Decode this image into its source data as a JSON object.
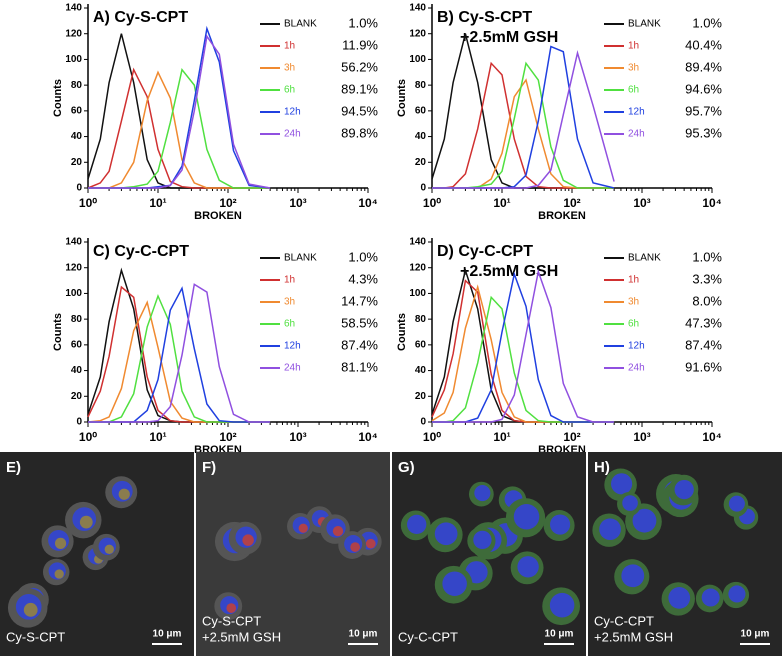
{
  "chart_data": [
    {
      "type": "line",
      "title": "A) Cy-S-CPT",
      "xlabel": "BROKEN",
      "ylabel": "Counts",
      "xscale": "log",
      "xlim": [
        1,
        10000
      ],
      "xticks": [
        {
          "value": 1,
          "label": "10⁰"
        },
        {
          "value": 10,
          "label": "10¹"
        },
        {
          "value": 100,
          "label": "10²"
        },
        {
          "value": 1000,
          "label": "10³"
        },
        {
          "value": 10000,
          "label": "10⁴"
        }
      ],
      "ylim": [
        0,
        140
      ],
      "yticks": [
        0,
        20,
        40,
        60,
        80,
        100,
        120,
        140
      ],
      "x": [
        1,
        1.5,
        2,
        3,
        4.5,
        7,
        10,
        15,
        22,
        33,
        50,
        75,
        120,
        200,
        400
      ],
      "series": [
        {
          "name": "BLANK",
          "color": "#111111",
          "gated_percent": "1.0%",
          "values": [
            7,
            38,
            82,
            120,
            82,
            22,
            4,
            0,
            0,
            0,
            0,
            0,
            0,
            0,
            0
          ]
        },
        {
          "name": "1h",
          "color": "#d03030",
          "gated_percent": "11.9%",
          "values": [
            0,
            4,
            13,
            52,
            92,
            71,
            30,
            5,
            1,
            0,
            0,
            0,
            0,
            0,
            0
          ]
        },
        {
          "name": "3h",
          "color": "#f08a30",
          "gated_percent": "56.2%",
          "values": [
            0,
            0,
            0,
            4,
            20,
            68,
            90,
            70,
            22,
            4,
            0,
            0,
            0,
            0,
            0
          ]
        },
        {
          "name": "6h",
          "color": "#50e040",
          "gated_percent": "89.1%",
          "values": [
            0,
            0,
            0,
            0,
            1,
            3,
            13,
            51,
            92,
            80,
            30,
            6,
            0,
            0,
            0
          ]
        },
        {
          "name": "12h",
          "color": "#2040e0",
          "gated_percent": "94.5%",
          "values": [
            0,
            0,
            0,
            0,
            0,
            0,
            1,
            2,
            17,
            68,
            124,
            98,
            29,
            2,
            0
          ]
        },
        {
          "name": "24h",
          "color": "#9050e0",
          "gated_percent": "89.8%",
          "values": [
            0,
            0,
            0,
            0,
            0,
            0,
            0,
            2,
            14,
            60,
            118,
            104,
            34,
            3,
            0
          ]
        }
      ]
    },
    {
      "type": "line",
      "title": "B) Cy-S-CPT",
      "subtitle": "+2.5mM GSH",
      "xlabel": "BROKEN",
      "ylabel": "Counts",
      "xscale": "log",
      "xlim": [
        1,
        10000
      ],
      "xticks": [
        {
          "value": 1,
          "label": "10⁰"
        },
        {
          "value": 10,
          "label": "10¹"
        },
        {
          "value": 100,
          "label": "10²"
        },
        {
          "value": 1000,
          "label": "10³"
        },
        {
          "value": 10000,
          "label": "10⁴"
        }
      ],
      "ylim": [
        0,
        140
      ],
      "yticks": [
        0,
        20,
        40,
        60,
        80,
        100,
        120,
        140
      ],
      "x": [
        1,
        1.5,
        2,
        3,
        4.5,
        7,
        10,
        15,
        22,
        33,
        50,
        75,
        120,
        200,
        400
      ],
      "series": [
        {
          "name": "BLANK",
          "color": "#111111",
          "gated_percent": "1.0%",
          "values": [
            7,
            38,
            82,
            120,
            82,
            22,
            4,
            0,
            0,
            0,
            0,
            0,
            0,
            0,
            0
          ]
        },
        {
          "name": "1h",
          "color": "#d03030",
          "gated_percent": "40.4%",
          "values": [
            0,
            0,
            1,
            11,
            46,
            97,
            88,
            38,
            9,
            1,
            0,
            0,
            0,
            0,
            0
          ]
        },
        {
          "name": "3h",
          "color": "#f08a30",
          "gated_percent": "89.4%",
          "values": [
            0,
            0,
            0,
            0,
            0,
            7,
            27,
            71,
            84,
            46,
            11,
            1,
            0,
            0,
            0
          ]
        },
        {
          "name": "6h",
          "color": "#50e040",
          "gated_percent": "94.6%",
          "values": [
            0,
            0,
            0,
            0,
            1,
            3,
            13,
            54,
            97,
            84,
            32,
            6,
            0,
            0,
            0
          ]
        },
        {
          "name": "12h",
          "color": "#2040e0",
          "gated_percent": "95.7%",
          "values": [
            0,
            0,
            0,
            0,
            0,
            0,
            0,
            1,
            10,
            52,
            110,
            106,
            38,
            4,
            0
          ]
        },
        {
          "name": "24h",
          "color": "#9050e0",
          "gated_percent": "95.3%",
          "values": [
            0,
            0,
            0,
            0,
            0,
            0,
            0,
            0,
            0,
            2,
            14,
            57,
            105,
            64,
            5
          ]
        }
      ]
    },
    {
      "type": "line",
      "title": "C) Cy-C-CPT",
      "xlabel": "BROKEN",
      "ylabel": "Counts",
      "xscale": "log",
      "xlim": [
        1,
        10000
      ],
      "xticks": [
        {
          "value": 1,
          "label": "10⁰"
        },
        {
          "value": 10,
          "label": "10¹"
        },
        {
          "value": 100,
          "label": "10²"
        },
        {
          "value": 1000,
          "label": "10³"
        },
        {
          "value": 10000,
          "label": "10⁴"
        }
      ],
      "ylim": [
        0,
        140
      ],
      "yticks": [
        0,
        20,
        40,
        60,
        80,
        100,
        120,
        140
      ],
      "x": [
        1,
        1.5,
        2,
        3,
        4.5,
        7,
        10,
        15,
        22,
        33,
        50,
        75,
        120,
        200,
        400
      ],
      "series": [
        {
          "name": "BLANK",
          "color": "#111111",
          "gated_percent": "1.0%",
          "values": [
            6,
            35,
            78,
            118,
            88,
            25,
            5,
            1,
            0,
            0,
            0,
            0,
            0,
            0,
            0
          ]
        },
        {
          "name": "1h",
          "color": "#d03030",
          "gated_percent": "4.3%",
          "values": [
            4,
            24,
            51,
            105,
            97,
            35,
            9,
            1,
            0,
            0,
            0,
            0,
            0,
            0,
            0
          ]
        },
        {
          "name": "3h",
          "color": "#f08a30",
          "gated_percent": "14.7%",
          "values": [
            0,
            1,
            4,
            26,
            71,
            93,
            58,
            16,
            3,
            0,
            0,
            0,
            0,
            0,
            0
          ]
        },
        {
          "name": "6h",
          "color": "#50e040",
          "gated_percent": "58.5%",
          "values": [
            0,
            0,
            0,
            4,
            22,
            74,
            98,
            76,
            24,
            4,
            0,
            0,
            0,
            0,
            0
          ]
        },
        {
          "name": "12h",
          "color": "#2040e0",
          "gated_percent": "87.4%",
          "values": [
            0,
            0,
            0,
            0,
            0,
            9,
            33,
            87,
            104,
            57,
            14,
            1,
            0,
            0,
            0
          ]
        },
        {
          "name": "24h",
          "color": "#9050e0",
          "gated_percent": "81.1%",
          "values": [
            0,
            0,
            0,
            0,
            0,
            0,
            1,
            12,
            52,
            107,
            101,
            43,
            6,
            0,
            0
          ]
        }
      ]
    },
    {
      "type": "line",
      "title": "D) Cy-C-CPT",
      "subtitle": "+2.5mM GSH",
      "xlabel": "BROKEN",
      "ylabel": "Counts",
      "xscale": "log",
      "xlim": [
        1,
        10000
      ],
      "xticks": [
        {
          "value": 1,
          "label": "10⁰"
        },
        {
          "value": 10,
          "label": "10¹"
        },
        {
          "value": 100,
          "label": "10²"
        },
        {
          "value": 1000,
          "label": "10³"
        },
        {
          "value": 10000,
          "label": "10⁴"
        }
      ],
      "ylim": [
        0,
        140
      ],
      "yticks": [
        0,
        20,
        40,
        60,
        80,
        100,
        120,
        140
      ],
      "x": [
        1,
        1.5,
        2,
        3,
        4.5,
        7,
        10,
        15,
        22,
        33,
        50,
        75,
        120,
        200,
        400
      ],
      "series": [
        {
          "name": "BLANK",
          "color": "#111111",
          "gated_percent": "1.0%",
          "values": [
            6,
            35,
            78,
            118,
            88,
            25,
            5,
            1,
            0,
            0,
            0,
            0,
            0,
            0,
            0
          ]
        },
        {
          "name": "1h",
          "color": "#d03030",
          "gated_percent": "3.3%",
          "values": [
            4,
            25,
            53,
            110,
            101,
            37,
            9,
            1,
            0,
            0,
            0,
            0,
            0,
            0,
            0
          ]
        },
        {
          "name": "3h",
          "color": "#f08a30",
          "gated_percent": "8.0%",
          "values": [
            1,
            7,
            23,
            73,
            105,
            64,
            23,
            4,
            0,
            0,
            0,
            0,
            0,
            0,
            0
          ]
        },
        {
          "name": "6h",
          "color": "#50e040",
          "gated_percent": "47.3%",
          "values": [
            0,
            0,
            1,
            11,
            46,
            97,
            88,
            38,
            9,
            1,
            0,
            0,
            0,
            0,
            0
          ]
        },
        {
          "name": "12h",
          "color": "#2040e0",
          "gated_percent": "87.4%",
          "values": [
            0,
            0,
            0,
            0,
            3,
            25,
            70,
            115,
            90,
            33,
            5,
            0,
            0,
            0,
            0
          ]
        },
        {
          "name": "24h",
          "color": "#9050e0",
          "gated_percent": "91.6%",
          "values": [
            0,
            0,
            0,
            0,
            0,
            0,
            2,
            21,
            68,
            117,
            89,
            30,
            4,
            0,
            0
          ]
        }
      ]
    }
  ],
  "images": [
    {
      "label": "E)",
      "caption": [
        "Cy-S-CPT"
      ],
      "scale_bar": "10 μm"
    },
    {
      "label": "F)",
      "caption": [
        "Cy-S-CPT",
        "+2.5mM GSH"
      ],
      "scale_bar": "10 μm"
    },
    {
      "label": "G)",
      "caption": [
        "Cy-C-CPT"
      ],
      "scale_bar": "10 μm"
    },
    {
      "label": "H)",
      "caption": [
        "Cy-C-CPT",
        "+2.5mM GSH"
      ],
      "scale_bar": "10 μm"
    }
  ]
}
